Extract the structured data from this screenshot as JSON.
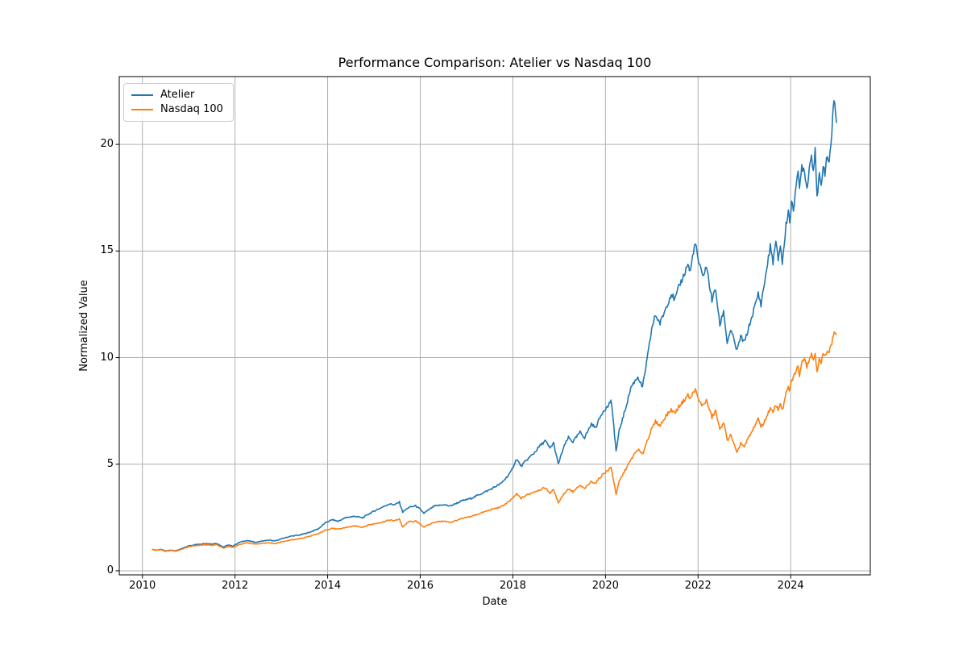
{
  "chart_data": {
    "type": "line",
    "title": "Performance Comparison: Atelier vs Nasdaq 100",
    "xlabel": "Date",
    "ylabel": "Normalized Value",
    "xlim": [
      2009.5,
      2025.72
    ],
    "ylim": [
      -0.19,
      23.18
    ],
    "xticks": [
      2010,
      2012,
      2014,
      2016,
      2018,
      2020,
      2022,
      2024
    ],
    "yticks": [
      0,
      5,
      10,
      15,
      20
    ],
    "grid": true,
    "legend_position": "upper-left",
    "colors": {
      "atelier": "#1f77b4",
      "nasdaq100": "#ff7f0e",
      "grid": "#b0b0b0",
      "spine": "#000000",
      "background": "#ffffff"
    },
    "series": [
      {
        "name": "Atelier",
        "color_key": "atelier",
        "points": [
          [
            2010.21,
            1.0
          ],
          [
            2010.3,
            0.97
          ],
          [
            2010.4,
            1.0
          ],
          [
            2010.5,
            0.93
          ],
          [
            2010.62,
            0.97
          ],
          [
            2010.72,
            0.94
          ],
          [
            2010.85,
            1.04
          ],
          [
            2011.0,
            1.17
          ],
          [
            2011.15,
            1.23
          ],
          [
            2011.35,
            1.28
          ],
          [
            2011.5,
            1.26
          ],
          [
            2011.6,
            1.29
          ],
          [
            2011.75,
            1.12
          ],
          [
            2011.85,
            1.21
          ],
          [
            2011.95,
            1.16
          ],
          [
            2012.1,
            1.34
          ],
          [
            2012.25,
            1.42
          ],
          [
            2012.45,
            1.34
          ],
          [
            2012.6,
            1.4
          ],
          [
            2012.75,
            1.44
          ],
          [
            2012.85,
            1.39
          ],
          [
            2013.0,
            1.5
          ],
          [
            2013.2,
            1.62
          ],
          [
            2013.4,
            1.68
          ],
          [
            2013.6,
            1.8
          ],
          [
            2013.8,
            1.97
          ],
          [
            2013.95,
            2.25
          ],
          [
            2014.1,
            2.4
          ],
          [
            2014.22,
            2.32
          ],
          [
            2014.4,
            2.5
          ],
          [
            2014.6,
            2.56
          ],
          [
            2014.75,
            2.48
          ],
          [
            2014.9,
            2.68
          ],
          [
            2015.0,
            2.8
          ],
          [
            2015.15,
            2.95
          ],
          [
            2015.33,
            3.14
          ],
          [
            2015.45,
            3.1
          ],
          [
            2015.55,
            3.22
          ],
          [
            2015.62,
            2.76
          ],
          [
            2015.75,
            2.97
          ],
          [
            2015.9,
            3.05
          ],
          [
            2016.0,
            2.88
          ],
          [
            2016.08,
            2.7
          ],
          [
            2016.3,
            3.03
          ],
          [
            2016.5,
            3.1
          ],
          [
            2016.65,
            3.04
          ],
          [
            2016.9,
            3.28
          ],
          [
            2017.1,
            3.4
          ],
          [
            2017.3,
            3.6
          ],
          [
            2017.5,
            3.8
          ],
          [
            2017.75,
            4.1
          ],
          [
            2017.95,
            4.6
          ],
          [
            2018.08,
            5.25
          ],
          [
            2018.18,
            4.9
          ],
          [
            2018.3,
            5.2
          ],
          [
            2018.45,
            5.5
          ],
          [
            2018.58,
            5.85
          ],
          [
            2018.7,
            6.1
          ],
          [
            2018.8,
            5.75
          ],
          [
            2018.88,
            6.0
          ],
          [
            2018.98,
            5.0
          ],
          [
            2019.1,
            5.8
          ],
          [
            2019.2,
            6.25
          ],
          [
            2019.3,
            6.05
          ],
          [
            2019.45,
            6.5
          ],
          [
            2019.55,
            6.25
          ],
          [
            2019.7,
            6.9
          ],
          [
            2019.78,
            6.7
          ],
          [
            2019.95,
            7.5
          ],
          [
            2020.05,
            7.7
          ],
          [
            2020.12,
            8.0
          ],
          [
            2020.18,
            6.8
          ],
          [
            2020.23,
            5.6
          ],
          [
            2020.3,
            6.6
          ],
          [
            2020.42,
            7.5
          ],
          [
            2020.55,
            8.6
          ],
          [
            2020.62,
            8.85
          ],
          [
            2020.7,
            9.1
          ],
          [
            2020.8,
            8.6
          ],
          [
            2020.9,
            9.9
          ],
          [
            2021.0,
            11.35
          ],
          [
            2021.08,
            12.0
          ],
          [
            2021.18,
            11.6
          ],
          [
            2021.3,
            12.3
          ],
          [
            2021.42,
            13.0
          ],
          [
            2021.5,
            12.7
          ],
          [
            2021.6,
            13.4
          ],
          [
            2021.7,
            13.9
          ],
          [
            2021.78,
            14.4
          ],
          [
            2021.83,
            14.0
          ],
          [
            2021.9,
            15.0
          ],
          [
            2021.94,
            15.35
          ],
          [
            2022.02,
            14.4
          ],
          [
            2022.1,
            13.8
          ],
          [
            2022.18,
            14.3
          ],
          [
            2022.3,
            12.7
          ],
          [
            2022.38,
            13.2
          ],
          [
            2022.47,
            11.5
          ],
          [
            2022.55,
            12.2
          ],
          [
            2022.63,
            10.7
          ],
          [
            2022.7,
            11.3
          ],
          [
            2022.78,
            10.8
          ],
          [
            2022.84,
            10.3
          ],
          [
            2022.92,
            11.0
          ],
          [
            2023.0,
            10.7
          ],
          [
            2023.08,
            11.3
          ],
          [
            2023.16,
            11.9
          ],
          [
            2023.24,
            12.5
          ],
          [
            2023.3,
            13.0
          ],
          [
            2023.36,
            12.5
          ],
          [
            2023.42,
            13.3
          ],
          [
            2023.5,
            14.4
          ],
          [
            2023.56,
            15.2
          ],
          [
            2023.62,
            14.5
          ],
          [
            2023.68,
            15.4
          ],
          [
            2023.73,
            14.6
          ],
          [
            2023.78,
            15.3
          ],
          [
            2023.82,
            14.4
          ],
          [
            2023.9,
            16.2
          ],
          [
            2023.95,
            16.9
          ],
          [
            2023.98,
            16.4
          ],
          [
            2024.02,
            17.2
          ],
          [
            2024.06,
            16.9
          ],
          [
            2024.12,
            18.3
          ],
          [
            2024.16,
            18.7
          ],
          [
            2024.19,
            17.8
          ],
          [
            2024.24,
            19.0
          ],
          [
            2024.3,
            18.8
          ],
          [
            2024.35,
            17.9
          ],
          [
            2024.4,
            18.9
          ],
          [
            2024.45,
            19.5
          ],
          [
            2024.49,
            18.8
          ],
          [
            2024.53,
            19.9
          ],
          [
            2024.57,
            17.4
          ],
          [
            2024.62,
            18.5
          ],
          [
            2024.66,
            18.0
          ],
          [
            2024.7,
            19.1
          ],
          [
            2024.74,
            18.7
          ],
          [
            2024.79,
            19.4
          ],
          [
            2024.83,
            19.2
          ],
          [
            2024.89,
            20.5
          ],
          [
            2024.92,
            21.7
          ],
          [
            2024.95,
            22.05
          ],
          [
            2024.97,
            21.5
          ],
          [
            2024.99,
            21.0
          ]
        ]
      },
      {
        "name": "Nasdaq 100",
        "color_key": "nasdaq100",
        "points": [
          [
            2010.21,
            1.0
          ],
          [
            2010.3,
            0.96
          ],
          [
            2010.4,
            0.99
          ],
          [
            2010.5,
            0.91
          ],
          [
            2010.62,
            0.95
          ],
          [
            2010.72,
            0.92
          ],
          [
            2010.85,
            1.01
          ],
          [
            2011.0,
            1.13
          ],
          [
            2011.15,
            1.18
          ],
          [
            2011.35,
            1.22
          ],
          [
            2011.5,
            1.2
          ],
          [
            2011.6,
            1.23
          ],
          [
            2011.75,
            1.06
          ],
          [
            2011.85,
            1.14
          ],
          [
            2011.95,
            1.1
          ],
          [
            2012.1,
            1.23
          ],
          [
            2012.25,
            1.31
          ],
          [
            2012.45,
            1.25
          ],
          [
            2012.6,
            1.3
          ],
          [
            2012.75,
            1.32
          ],
          [
            2012.85,
            1.27
          ],
          [
            2013.0,
            1.36
          ],
          [
            2013.2,
            1.44
          ],
          [
            2013.4,
            1.51
          ],
          [
            2013.6,
            1.61
          ],
          [
            2013.8,
            1.74
          ],
          [
            2013.95,
            1.9
          ],
          [
            2014.1,
            2.0
          ],
          [
            2014.22,
            1.94
          ],
          [
            2014.4,
            2.04
          ],
          [
            2014.6,
            2.1
          ],
          [
            2014.75,
            2.05
          ],
          [
            2014.9,
            2.16
          ],
          [
            2015.0,
            2.2
          ],
          [
            2015.15,
            2.27
          ],
          [
            2015.33,
            2.38
          ],
          [
            2015.45,
            2.35
          ],
          [
            2015.55,
            2.44
          ],
          [
            2015.62,
            2.05
          ],
          [
            2015.75,
            2.3
          ],
          [
            2015.9,
            2.33
          ],
          [
            2016.0,
            2.2
          ],
          [
            2016.08,
            2.05
          ],
          [
            2016.3,
            2.28
          ],
          [
            2016.5,
            2.33
          ],
          [
            2016.65,
            2.27
          ],
          [
            2016.9,
            2.45
          ],
          [
            2017.1,
            2.55
          ],
          [
            2017.3,
            2.7
          ],
          [
            2017.5,
            2.85
          ],
          [
            2017.75,
            3.0
          ],
          [
            2017.95,
            3.3
          ],
          [
            2018.08,
            3.6
          ],
          [
            2018.18,
            3.4
          ],
          [
            2018.3,
            3.55
          ],
          [
            2018.45,
            3.7
          ],
          [
            2018.58,
            3.8
          ],
          [
            2018.7,
            3.9
          ],
          [
            2018.8,
            3.65
          ],
          [
            2018.88,
            3.8
          ],
          [
            2018.98,
            3.2
          ],
          [
            2019.1,
            3.6
          ],
          [
            2019.2,
            3.85
          ],
          [
            2019.3,
            3.7
          ],
          [
            2019.45,
            4.0
          ],
          [
            2019.55,
            3.85
          ],
          [
            2019.7,
            4.2
          ],
          [
            2019.78,
            4.1
          ],
          [
            2019.95,
            4.55
          ],
          [
            2020.05,
            4.7
          ],
          [
            2020.12,
            4.85
          ],
          [
            2020.18,
            4.2
          ],
          [
            2020.23,
            3.6
          ],
          [
            2020.3,
            4.2
          ],
          [
            2020.42,
            4.7
          ],
          [
            2020.55,
            5.2
          ],
          [
            2020.62,
            5.45
          ],
          [
            2020.7,
            5.7
          ],
          [
            2020.8,
            5.45
          ],
          [
            2020.9,
            6.1
          ],
          [
            2021.0,
            6.65
          ],
          [
            2021.08,
            7.0
          ],
          [
            2021.18,
            6.8
          ],
          [
            2021.3,
            7.25
          ],
          [
            2021.42,
            7.55
          ],
          [
            2021.5,
            7.4
          ],
          [
            2021.6,
            7.75
          ],
          [
            2021.7,
            8.0
          ],
          [
            2021.78,
            8.25
          ],
          [
            2021.83,
            8.05
          ],
          [
            2021.9,
            8.4
          ],
          [
            2021.94,
            8.5
          ],
          [
            2022.02,
            7.95
          ],
          [
            2022.1,
            7.75
          ],
          [
            2022.18,
            8.0
          ],
          [
            2022.3,
            7.2
          ],
          [
            2022.38,
            7.5
          ],
          [
            2022.47,
            6.6
          ],
          [
            2022.55,
            7.0
          ],
          [
            2022.63,
            6.1
          ],
          [
            2022.7,
            6.4
          ],
          [
            2022.78,
            5.9
          ],
          [
            2022.84,
            5.5
          ],
          [
            2022.92,
            6.0
          ],
          [
            2023.0,
            5.8
          ],
          [
            2023.08,
            6.2
          ],
          [
            2023.16,
            6.5
          ],
          [
            2023.24,
            6.9
          ],
          [
            2023.3,
            7.1
          ],
          [
            2023.36,
            6.8
          ],
          [
            2023.42,
            6.9
          ],
          [
            2023.5,
            7.35
          ],
          [
            2023.56,
            7.6
          ],
          [
            2023.62,
            7.4
          ],
          [
            2023.68,
            7.8
          ],
          [
            2023.73,
            7.55
          ],
          [
            2023.78,
            7.9
          ],
          [
            2023.82,
            7.5
          ],
          [
            2023.9,
            8.3
          ],
          [
            2023.95,
            8.6
          ],
          [
            2023.98,
            8.45
          ],
          [
            2024.02,
            8.9
          ],
          [
            2024.06,
            9.1
          ],
          [
            2024.12,
            9.4
          ],
          [
            2024.16,
            9.55
          ],
          [
            2024.19,
            9.2
          ],
          [
            2024.24,
            9.75
          ],
          [
            2024.3,
            10.05
          ],
          [
            2024.35,
            9.6
          ],
          [
            2024.4,
            9.95
          ],
          [
            2024.45,
            10.15
          ],
          [
            2024.49,
            9.9
          ],
          [
            2024.53,
            10.2
          ],
          [
            2024.57,
            9.4
          ],
          [
            2024.62,
            9.9
          ],
          [
            2024.66,
            9.7
          ],
          [
            2024.7,
            10.2
          ],
          [
            2024.74,
            10.0
          ],
          [
            2024.79,
            10.4
          ],
          [
            2024.83,
            10.25
          ],
          [
            2024.89,
            10.7
          ],
          [
            2024.92,
            11.0
          ],
          [
            2024.94,
            11.25
          ],
          [
            2024.97,
            11.15
          ],
          [
            2024.99,
            11.05
          ]
        ]
      }
    ]
  }
}
